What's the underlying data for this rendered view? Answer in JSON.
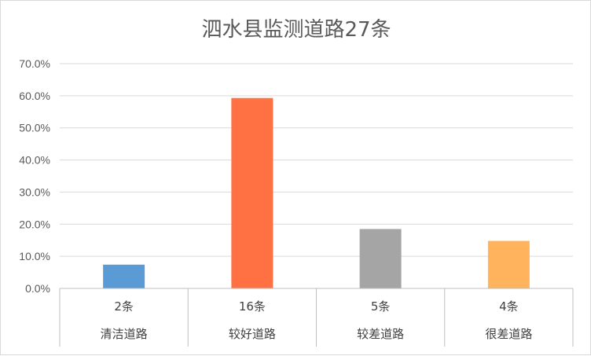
{
  "chart_data": {
    "type": "bar",
    "title": "泗水县监测道路27条",
    "categories": [
      "清洁道路",
      "较好道路",
      "较差道路",
      "很差道路"
    ],
    "counts": [
      "2条",
      "16条",
      "5条",
      "4条"
    ],
    "values": [
      7.4,
      59.3,
      18.5,
      14.8
    ],
    "colors": [
      "#5b9bd5",
      "#ff7043",
      "#a5a5a5",
      "#ffb35c"
    ],
    "ylim": [
      0,
      70
    ],
    "yticks": [
      "0.0%",
      "10.0%",
      "20.0%",
      "30.0%",
      "40.0%",
      "50.0%",
      "60.0%",
      "70.0%"
    ],
    "grid": true,
    "legend": "none"
  }
}
